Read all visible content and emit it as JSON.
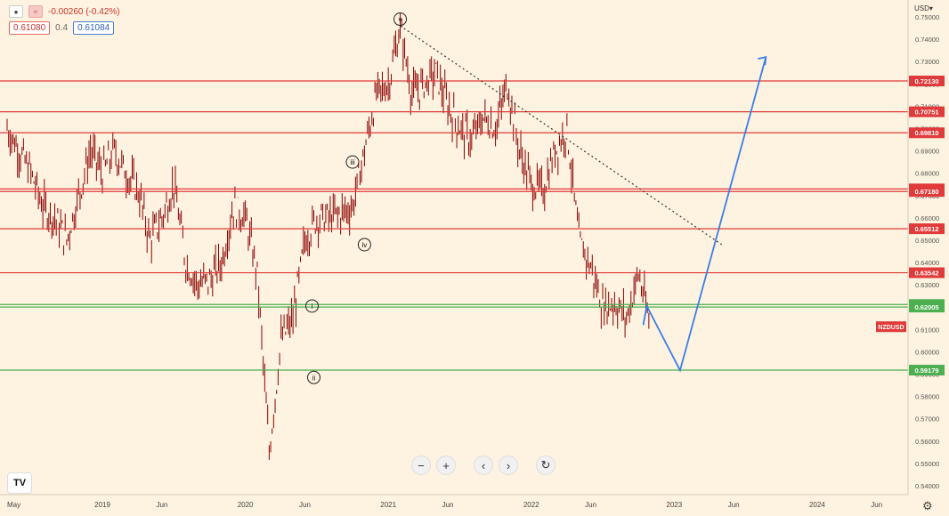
{
  "header": {
    "change": "-0.00260 (-0.42%)",
    "bid": "0.61080",
    "spread": "0.4",
    "ask": "0.61084"
  },
  "currency_label": "USD",
  "symbol_tag": "NZDUSD",
  "chart_data": {
    "type": "line",
    "title": "",
    "symbol": "NZDUSD",
    "y_axis_ticks": [
      "0.75000",
      "0.74000",
      "0.73000",
      "0.72000",
      "0.71000",
      "0.70000",
      "0.69000",
      "0.68000",
      "0.67000",
      "0.66000",
      "0.65000",
      "0.64000",
      "0.63000",
      "0.62000",
      "0.61000",
      "0.60000",
      "0.59000",
      "0.58000",
      "0.57000",
      "0.56000",
      "0.55000",
      "0.54000"
    ],
    "x_axis_ticks": [
      "May",
      "2019",
      "Jun",
      "2020",
      "Jun",
      "2021",
      "Jun",
      "2022",
      "Jun",
      "2023",
      "Jun",
      "2024",
      "Jun"
    ],
    "ylim": [
      0.535,
      0.752
    ],
    "colors": {
      "candle": "#8b0000",
      "resistance": "#e03a3a",
      "support": "#4caf50",
      "projection": "#3d7de6",
      "trendline": "#333333"
    },
    "price_series": [
      [
        "2018-05",
        0.7
      ],
      [
        "2018-06",
        0.69
      ],
      [
        "2018-07",
        0.68
      ],
      [
        "2018-08",
        0.665
      ],
      [
        "2018-09",
        0.66
      ],
      [
        "2018-10",
        0.65
      ],
      [
        "2018-11",
        0.67
      ],
      [
        "2018-12",
        0.69
      ],
      [
        "2019-01",
        0.68
      ],
      [
        "2019-02",
        0.69
      ],
      [
        "2019-03",
        0.68
      ],
      [
        "2019-04",
        0.672
      ],
      [
        "2019-05",
        0.65
      ],
      [
        "2019-06",
        0.66
      ],
      [
        "2019-07",
        0.675
      ],
      [
        "2019-08",
        0.64
      ],
      [
        "2019-09",
        0.63
      ],
      [
        "2019-10",
        0.632
      ],
      [
        "2019-11",
        0.64
      ],
      [
        "2019-12",
        0.665
      ],
      [
        "2020-01",
        0.66
      ],
      [
        "2020-02",
        0.635
      ],
      [
        "2020-03",
        0.555
      ],
      [
        "2020-04",
        0.605
      ],
      [
        "2020-05",
        0.615
      ],
      [
        "2020-06",
        0.65
      ],
      [
        "2020-07",
        0.66
      ],
      [
        "2020-08",
        0.66
      ],
      [
        "2020-09",
        0.662
      ],
      [
        "2020-10",
        0.665
      ],
      [
        "2020-11",
        0.69
      ],
      [
        "2020-12",
        0.715
      ],
      [
        "2021-01",
        0.72
      ],
      [
        "2021-02",
        0.745
      ],
      [
        "2021-03",
        0.715
      ],
      [
        "2021-04",
        0.72
      ],
      [
        "2021-05",
        0.725
      ],
      [
        "2021-06",
        0.71
      ],
      [
        "2021-07",
        0.7
      ],
      [
        "2021-08",
        0.695
      ],
      [
        "2021-09",
        0.705
      ],
      [
        "2021-10",
        0.7
      ],
      [
        "2021-11",
        0.72
      ],
      [
        "2021-12",
        0.69
      ],
      [
        "2022-01",
        0.675
      ],
      [
        "2022-02",
        0.672
      ],
      [
        "2022-03",
        0.69
      ],
      [
        "2022-04",
        0.7
      ],
      [
        "2022-05",
        0.65
      ],
      [
        "2022-06",
        0.638
      ],
      [
        "2022-07",
        0.62
      ],
      [
        "2022-08",
        0.622
      ],
      [
        "2022-09",
        0.615
      ],
      [
        "2022-10",
        0.635
      ],
      [
        "2022-11",
        0.611
      ]
    ],
    "horizontal_levels": [
      {
        "price": 0.7213,
        "label": "0.72130",
        "kind": "resistance"
      },
      {
        "price": 0.70751,
        "label": "0.70751",
        "kind": "resistance"
      },
      {
        "price": 0.6981,
        "label": "0.69810",
        "kind": "resistance"
      },
      {
        "price": 0.67295,
        "label": "0.67295",
        "kind": "resistance"
      },
      {
        "price": 0.6718,
        "label": "0.67180",
        "kind": "resistance"
      },
      {
        "price": 0.65512,
        "label": "0.65512",
        "kind": "resistance"
      },
      {
        "price": 0.63542,
        "label": "0.63542",
        "kind": "resistance"
      },
      {
        "price": 0.62118,
        "label": "0.62118",
        "kind": "support"
      },
      {
        "price": 0.62005,
        "label": "0.62005",
        "kind": "support"
      },
      {
        "price": 0.59179,
        "label": "0.59179",
        "kind": "support"
      }
    ],
    "current_price": 0.61084,
    "wave_labels": [
      {
        "label": "i",
        "date": "2020-06",
        "price": 0.6205
      },
      {
        "label": "ii",
        "date": "2020-06",
        "price": 0.5885
      },
      {
        "label": "iii",
        "date": "2020-10",
        "price": 0.685
      },
      {
        "label": "iv",
        "date": "2020-11",
        "price": 0.648
      },
      {
        "label": "v",
        "date": "2021-02",
        "price": 0.749
      }
    ],
    "trendline": [
      [
        "2021-02",
        0.746
      ],
      [
        "2023-05",
        0.648
      ]
    ],
    "projection": [
      [
        "2022-11",
        0.612
      ],
      [
        "2022-11",
        0.6205
      ],
      [
        "2022-12",
        0.5917
      ],
      [
        "2023-09",
        0.732
      ]
    ]
  }
}
